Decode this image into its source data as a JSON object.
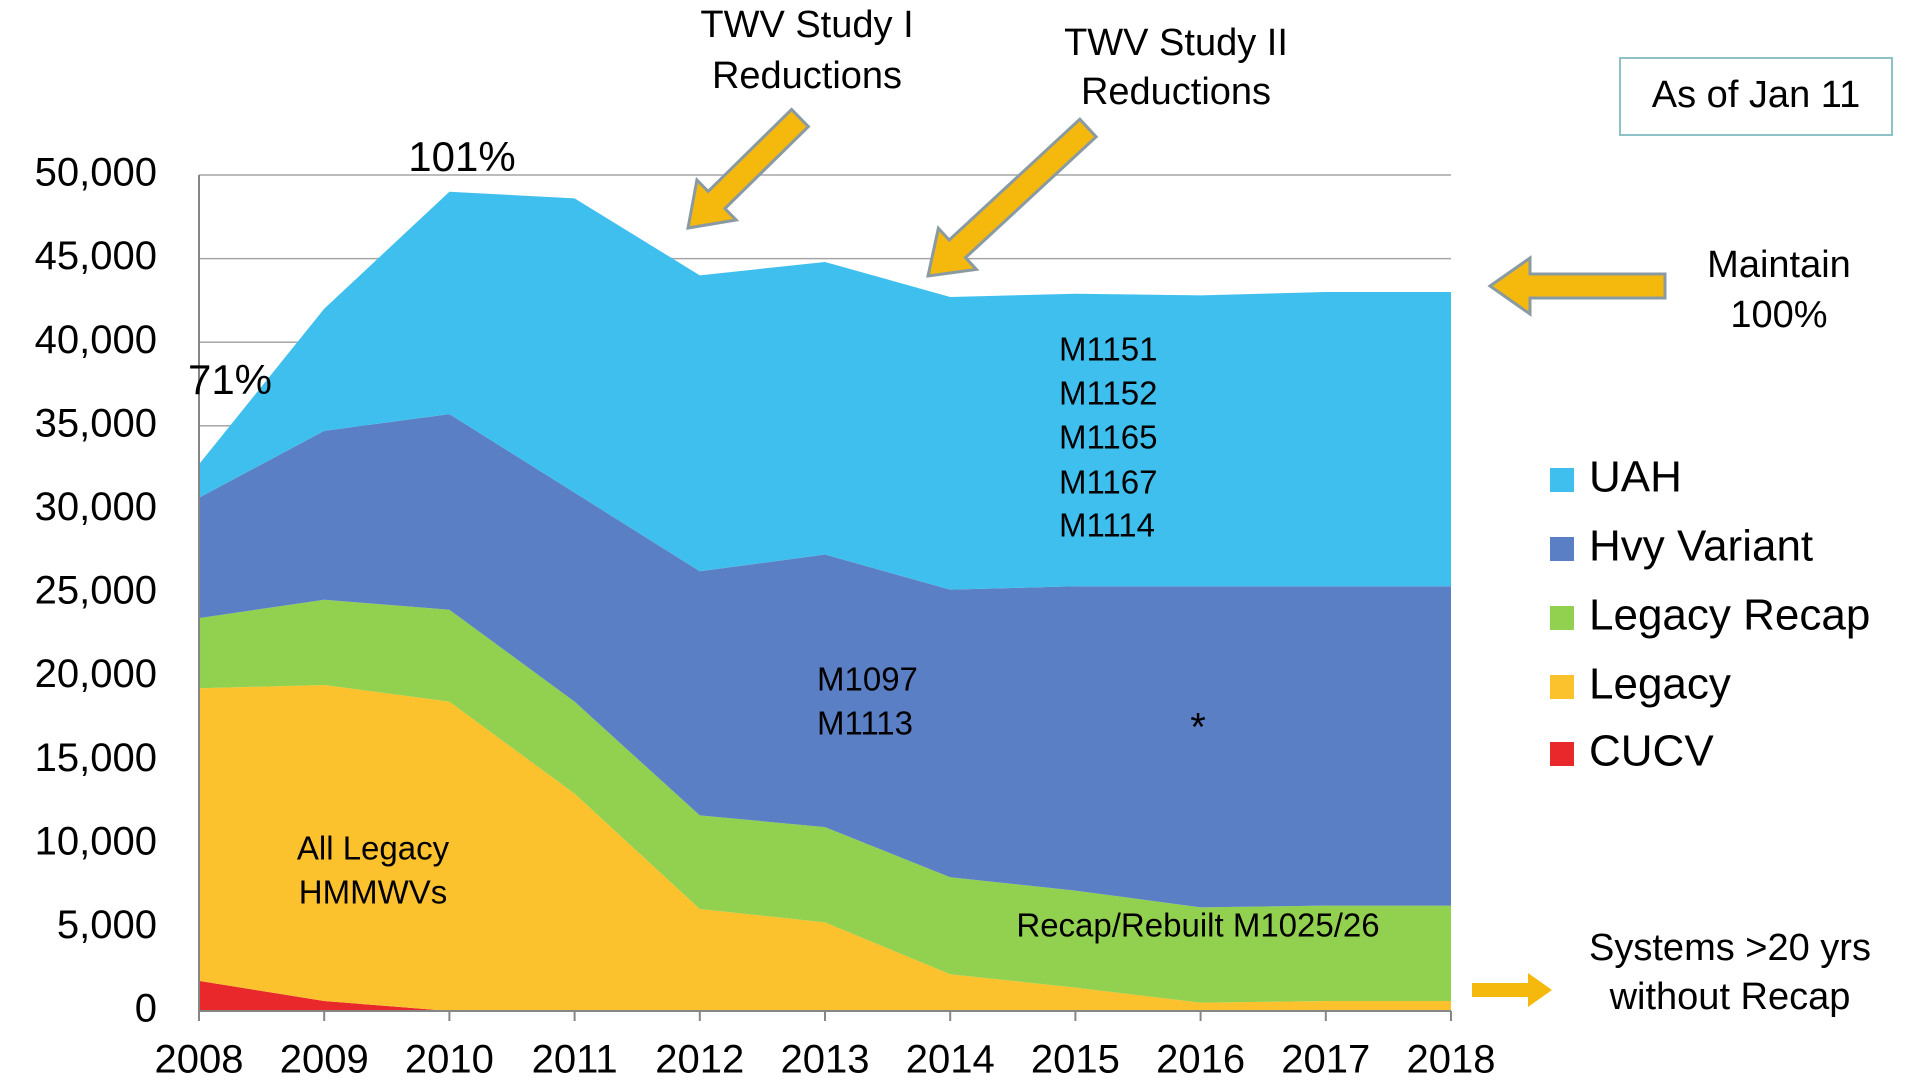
{
  "chart_data": {
    "type": "stacked_area",
    "x": [
      2008,
      2009,
      2010,
      2011,
      2012,
      2013,
      2014,
      2015,
      2016,
      2017,
      2018
    ],
    "xlim": [
      2008,
      2018
    ],
    "xticks": [
      2008,
      2009,
      2010,
      2011,
      2012,
      2013,
      2014,
      2015,
      2016,
      2017,
      2018
    ],
    "ylim": [
      0,
      50000
    ],
    "yticks": [
      0,
      {
        "value": 5000,
        "label": "5,000"
      },
      {
        "value": 10000,
        "label": "10,000"
      },
      {
        "value": 15000,
        "label": "15,000"
      },
      {
        "value": 20000,
        "label": "20,000"
      },
      {
        "value": 25000,
        "label": "25,000"
      },
      {
        "value": 30000,
        "label": "30,000"
      },
      {
        "value": 35000,
        "label": "35,000"
      },
      {
        "value": 40000,
        "label": "40,000"
      },
      {
        "value": 45000,
        "label": "45,000"
      },
      {
        "value": 50000,
        "label": "50,000"
      }
    ],
    "grid": true,
    "series": [
      {
        "name": "UAH",
        "color": "#3fbfee",
        "values": [
          2000,
          7300,
          13300,
          17600,
          17700,
          17500,
          17500,
          17500,
          17400,
          17600,
          17600
        ]
      },
      {
        "name": "Hvy Variant",
        "color": "#5b7fc4",
        "values": [
          7200,
          10100,
          11700,
          12500,
          14600,
          16300,
          17200,
          18200,
          19200,
          19100,
          19100
        ]
      },
      {
        "name": "Legacy Recap",
        "color": "#92d050",
        "values": [
          4200,
          5100,
          5500,
          5500,
          5600,
          5700,
          5800,
          5800,
          5700,
          5700,
          5700
        ]
      },
      {
        "name": "Legacy",
        "color": "#fbc22d",
        "values": [
          17500,
          18900,
          18500,
          13000,
          6100,
          5300,
          2200,
          1400,
          500,
          600,
          600
        ]
      },
      {
        "name": "CUCV",
        "color": "#e8282b",
        "values": [
          1800,
          600,
          0,
          0,
          0,
          0,
          0,
          0,
          0,
          0,
          0
        ]
      }
    ],
    "annotations": [
      {
        "lines": [
          "TWV Study I",
          "Reductions"
        ]
      },
      {
        "lines": [
          "TWV Study II",
          "Reductions"
        ]
      },
      {
        "lines": [
          "As of Jan 11"
        ]
      },
      {
        "lines": [
          "101%"
        ]
      },
      {
        "lines": [
          "71%"
        ]
      },
      {
        "lines": [
          "Maintain",
          "100%"
        ]
      },
      {
        "lines": [
          "M1151",
          "M1152",
          "M1165",
          "M1167",
          "M1114"
        ]
      },
      {
        "lines": [
          "M1097",
          "M1113"
        ]
      },
      {
        "lines": [
          "*"
        ]
      },
      {
        "lines": [
          "All Legacy",
          "HMMWVs"
        ]
      },
      {
        "lines": [
          "Recap/Rebuilt M1025/26"
        ]
      },
      {
        "lines": [
          "Systems >20 yrs",
          "without Recap"
        ]
      }
    ]
  }
}
